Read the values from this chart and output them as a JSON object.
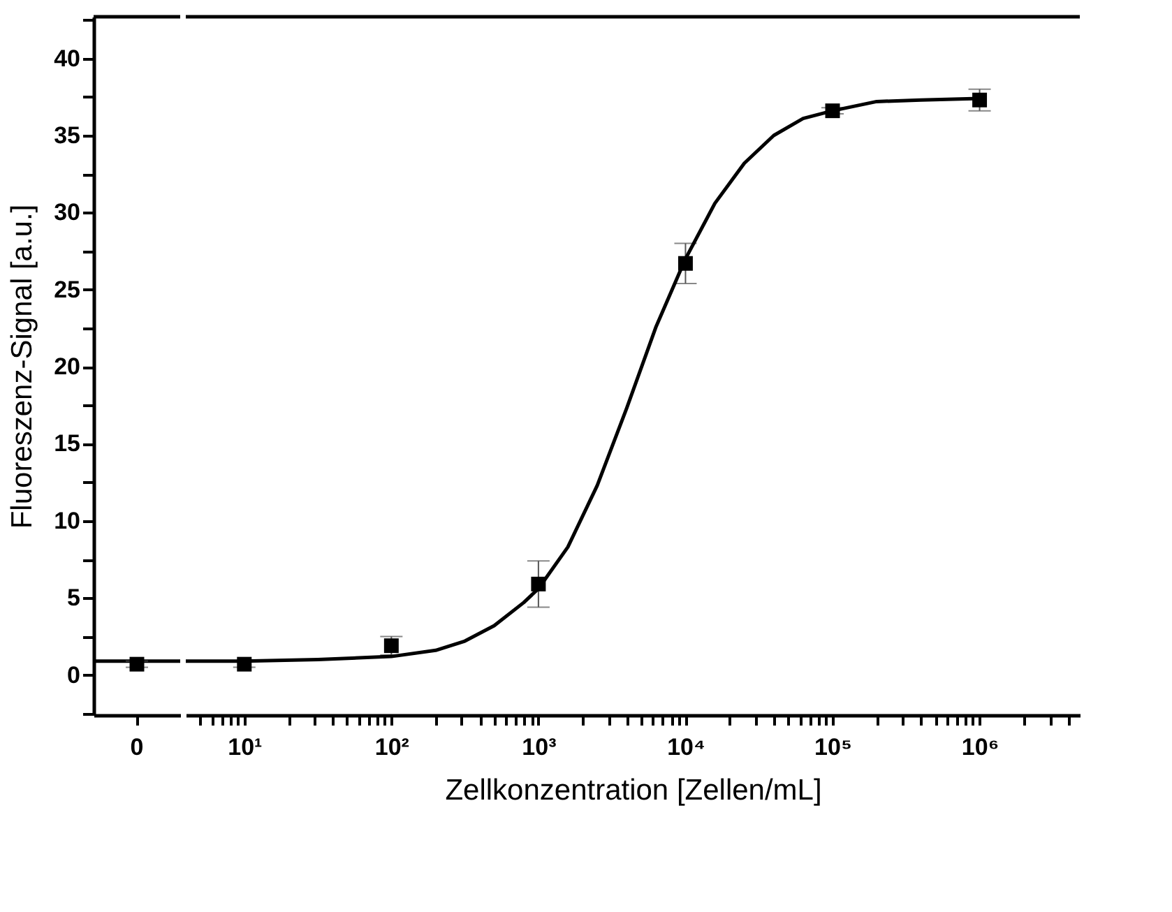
{
  "chart_data": [
    {
      "type": "scatter",
      "ylabel": "Fluoreszenz-Signal [a.u.]",
      "categories": [
        "0"
      ],
      "ylim": [
        -2.6,
        42.7
      ],
      "yticks": [
        {
          "value": -2.5,
          "label": null
        },
        0,
        {
          "value": 2.5,
          "label": null
        },
        5,
        {
          "value": 7.5,
          "label": null
        },
        10,
        {
          "value": 12.5,
          "label": null
        },
        15,
        {
          "value": 17.5,
          "label": null
        },
        20,
        {
          "value": 22.5,
          "label": null
        },
        25,
        {
          "value": 27.5,
          "label": null
        },
        30,
        {
          "value": 32.5,
          "label": null
        },
        35,
        {
          "value": 37.5,
          "label": null
        },
        40,
        {
          "value": 42.5,
          "label": null
        }
      ],
      "marker": "square",
      "values": [
        0.7
      ],
      "errors": [
        0.2
      ],
      "ref_lines": [
        {
          "axis": "y",
          "value": 0.9,
          "color": "#000000",
          "line_style": "solid"
        }
      ]
    },
    {
      "type": "scatter",
      "xlabel": "Zellkonzentration [Zellen/mL]",
      "log": "x",
      "xlim": [
        4,
        4800000
      ],
      "ylim": [
        -2.6,
        42.7
      ],
      "tick_labels": "x",
      "xticks": [
        {
          "value": 5,
          "label": null
        },
        {
          "value": 6,
          "label": null
        },
        {
          "value": 7,
          "label": null
        },
        {
          "value": 8,
          "label": null
        },
        {
          "value": 9,
          "label": null
        },
        {
          "value": 10,
          "label": "10¹"
        },
        {
          "value": 20,
          "label": null
        },
        {
          "value": 30,
          "label": null
        },
        {
          "value": 40,
          "label": null
        },
        {
          "value": 50,
          "label": null
        },
        {
          "value": 60,
          "label": null
        },
        {
          "value": 70,
          "label": null
        },
        {
          "value": 80,
          "label": null
        },
        {
          "value": 90,
          "label": null
        },
        {
          "value": 100,
          "label": "10²"
        },
        {
          "value": 200,
          "label": null
        },
        {
          "value": 300,
          "label": null
        },
        {
          "value": 400,
          "label": null
        },
        {
          "value": 500,
          "label": null
        },
        {
          "value": 600,
          "label": null
        },
        {
          "value": 700,
          "label": null
        },
        {
          "value": 800,
          "label": null
        },
        {
          "value": 900,
          "label": null
        },
        {
          "value": 1000,
          "label": "10³"
        },
        {
          "value": 2000,
          "label": null
        },
        {
          "value": 3000,
          "label": null
        },
        {
          "value": 4000,
          "label": null
        },
        {
          "value": 5000,
          "label": null
        },
        {
          "value": 6000,
          "label": null
        },
        {
          "value": 7000,
          "label": null
        },
        {
          "value": 8000,
          "label": null
        },
        {
          "value": 9000,
          "label": null
        },
        {
          "value": 10000,
          "label": "10⁴"
        },
        {
          "value": 20000,
          "label": null
        },
        {
          "value": 30000,
          "label": null
        },
        {
          "value": 40000,
          "label": null
        },
        {
          "value": 50000,
          "label": null
        },
        {
          "value": 60000,
          "label": null
        },
        {
          "value": 70000,
          "label": null
        },
        {
          "value": 80000,
          "label": null
        },
        {
          "value": 90000,
          "label": null
        },
        {
          "value": 100000,
          "label": "10⁵"
        },
        {
          "value": 200000,
          "label": null
        },
        {
          "value": 300000,
          "label": null
        },
        {
          "value": 400000,
          "label": null
        },
        {
          "value": 500000,
          "label": null
        },
        {
          "value": 600000,
          "label": null
        },
        {
          "value": 700000,
          "label": null
        },
        {
          "value": 800000,
          "label": null
        },
        {
          "value": 900000,
          "label": null
        },
        {
          "value": 1000000,
          "label": "10⁶"
        },
        {
          "value": 2000000,
          "label": null
        },
        {
          "value": 3000000,
          "label": null
        },
        {
          "value": 4000000,
          "label": null
        }
      ],
      "series": [
        {
          "color": "#000000",
          "marker": "square",
          "x": [
            10,
            100,
            1000,
            10000,
            100000,
            1000000
          ],
          "values": [
            0.7,
            1.9,
            5.9,
            26.7,
            36.6,
            37.3
          ],
          "errors": [
            0.2,
            0.6,
            1.5,
            1.3,
            0.2,
            0.7
          ]
        },
        {
          "type": "line",
          "color": "#000000",
          "marker": "none",
          "x": [
            4,
            10,
            31.6,
            100,
            200,
            316,
            500,
            794,
            1000,
            1585,
            2512,
            3981,
            6310,
            10000,
            15849,
            25119,
            39811,
            63096,
            100000,
            199526,
            398107,
            1000000
          ],
          "values": [
            0.9,
            0.9,
            1.0,
            1.2,
            1.6,
            2.2,
            3.2,
            4.7,
            5.6,
            8.3,
            12.3,
            17.3,
            22.6,
            27.0,
            30.6,
            33.2,
            35.0,
            36.1,
            36.6,
            37.2,
            37.3,
            37.4
          ]
        }
      ]
    }
  ]
}
